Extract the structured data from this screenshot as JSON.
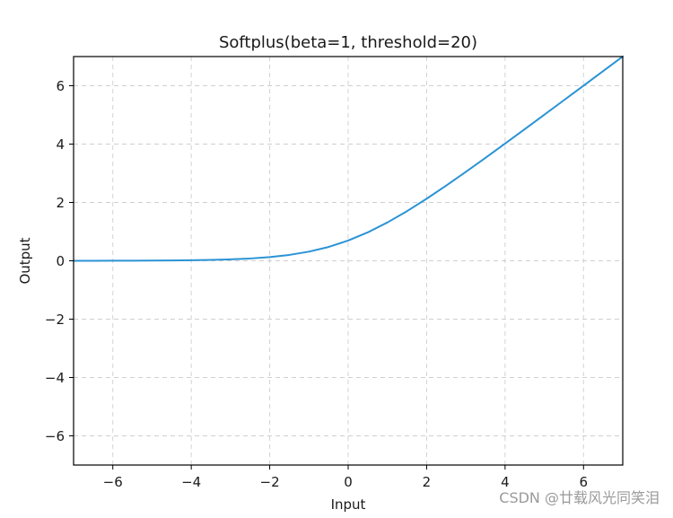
{
  "chart_data": {
    "type": "line",
    "title": "Softplus(beta=1, threshold=20)",
    "xlabel": "Input",
    "ylabel": "Output",
    "xlim": [
      -7,
      7
    ],
    "ylim": [
      -7,
      7
    ],
    "xticks": [
      -6,
      -4,
      -2,
      0,
      2,
      4,
      6
    ],
    "yticks": [
      -6,
      -4,
      -2,
      0,
      2,
      4,
      6
    ],
    "grid": true,
    "grid_style": "dashed",
    "series": [
      {
        "color": "#2a93d5",
        "x": [
          -7,
          -6.5,
          -6,
          -5.5,
          -5,
          -4.5,
          -4,
          -3.5,
          -3,
          -2.5,
          -2,
          -1.5,
          -1,
          -0.5,
          0,
          0.5,
          1,
          1.5,
          2,
          2.5,
          3,
          3.5,
          4,
          4.5,
          5,
          5.5,
          6,
          6.5,
          7
        ],
        "y": [
          0.0009,
          0.0015,
          0.0025,
          0.0041,
          0.0067,
          0.011,
          0.0181,
          0.0298,
          0.0486,
          0.0789,
          0.1269,
          0.2014,
          0.3133,
          0.4741,
          0.6931,
          0.9741,
          1.3133,
          1.7014,
          2.1269,
          2.5789,
          3.0486,
          3.5298,
          4.0181,
          4.511,
          5.0067,
          5.5041,
          6.0025,
          6.5015,
          7.0009
        ]
      }
    ]
  },
  "watermark": "CSDN @廿载风光同笑泪"
}
